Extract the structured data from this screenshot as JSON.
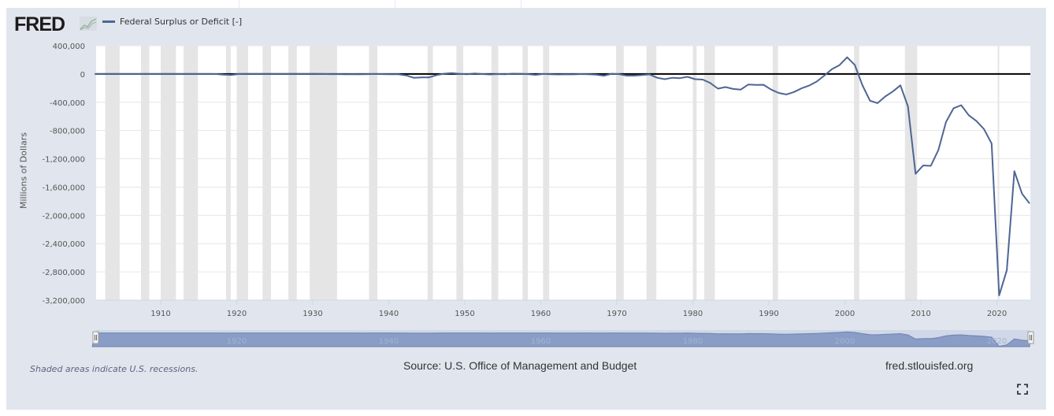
{
  "header": {
    "logo_text": "FRED",
    "logo_icon": "chart-line-icon",
    "legend_label": "Federal Surplus or Deficit [-]",
    "series_color": "#4e6694"
  },
  "footer": {
    "note": "Shaded areas indicate U.S. recessions.",
    "source": "Source: U.S. Office of Management and Budget",
    "site": "fred.stlouisfed.org",
    "fullscreen_icon": "fullscreen-icon"
  },
  "chart_data": {
    "type": "line",
    "title": "Federal Surplus or Deficit [-]",
    "xlabel": "",
    "ylabel": "Millions of Dollars",
    "xlim": [
      1901.5,
      2024.4
    ],
    "ylim": [
      -3200000,
      400000
    ],
    "grid": true,
    "legend": "top-left",
    "y_ticks": [
      400000,
      0,
      -400000,
      -800000,
      -1200000,
      -1600000,
      -2000000,
      -2400000,
      -2800000,
      -3200000
    ],
    "y_tick_labels": [
      "400,000",
      "0",
      "-400,000",
      "-800,000",
      "-1,200,000",
      "-1,600,000",
      "-2,000,000",
      "-2,400,000",
      "-2,800,000",
      "-3,200,000"
    ],
    "x_ticks": [
      1910,
      1920,
      1930,
      1940,
      1950,
      1960,
      1970,
      1980,
      1990,
      2000,
      2010,
      2020
    ],
    "x_tick_labels": [
      "1910",
      "1920",
      "1930",
      "1940",
      "1950",
      "1960",
      "1970",
      "1980",
      "1990",
      "2000",
      "2010",
      "2020"
    ],
    "navigator_labels": [
      "1920",
      "1940",
      "1960",
      "1980",
      "2000",
      "2020"
    ],
    "recessions": [
      [
        1902.7,
        1904.6
      ],
      [
        1907.4,
        1908.5
      ],
      [
        1910.0,
        1912.0
      ],
      [
        1913.0,
        1914.9
      ],
      [
        1918.6,
        1919.2
      ],
      [
        1920.0,
        1921.5
      ],
      [
        1923.4,
        1924.5
      ],
      [
        1926.8,
        1927.9
      ],
      [
        1929.6,
        1933.2
      ],
      [
        1937.4,
        1938.5
      ],
      [
        1945.1,
        1945.8
      ],
      [
        1948.9,
        1949.8
      ],
      [
        1953.5,
        1954.4
      ],
      [
        1957.6,
        1958.3
      ],
      [
        1960.3,
        1961.1
      ],
      [
        1969.9,
        1970.9
      ],
      [
        1973.9,
        1975.2
      ],
      [
        1980.0,
        1980.5
      ],
      [
        1981.5,
        1982.9
      ],
      [
        1990.5,
        1991.2
      ],
      [
        2001.2,
        2001.9
      ],
      [
        2007.9,
        2009.5
      ],
      [
        2020.1,
        2020.3
      ]
    ],
    "series": [
      {
        "name": "Federal Surplus or Deficit [-]",
        "x": [
          1901,
          1902,
          1903,
          1904,
          1905,
          1906,
          1907,
          1908,
          1909,
          1910,
          1911,
          1912,
          1913,
          1914,
          1915,
          1916,
          1917,
          1918,
          1919,
          1920,
          1921,
          1922,
          1923,
          1924,
          1925,
          1926,
          1927,
          1928,
          1929,
          1930,
          1931,
          1932,
          1933,
          1934,
          1935,
          1936,
          1937,
          1938,
          1939,
          1940,
          1941,
          1942,
          1943,
          1944,
          1945,
          1946,
          1947,
          1948,
          1949,
          1950,
          1951,
          1952,
          1953,
          1954,
          1955,
          1956,
          1957,
          1958,
          1959,
          1960,
          1961,
          1962,
          1963,
          1964,
          1965,
          1966,
          1967,
          1968,
          1969,
          1970,
          1971,
          1972,
          1973,
          1974,
          1975,
          1976,
          1977,
          1978,
          1979,
          1980,
          1981,
          1982,
          1983,
          1984,
          1985,
          1986,
          1987,
          1988,
          1989,
          1990,
          1991,
          1992,
          1993,
          1994,
          1995,
          1996,
          1997,
          1998,
          1999,
          2000,
          2001,
          2002,
          2003,
          2004,
          2005,
          2006,
          2007,
          2008,
          2009,
          2010,
          2011,
          2012,
          2013,
          2014,
          2015,
          2016,
          2017,
          2018,
          2019,
          2020,
          2021,
          2022,
          2023,
          2024
        ],
        "values": [
          63,
          77,
          45,
          -43,
          -23,
          25,
          87,
          -57,
          -89,
          -18,
          11,
          3,
          0,
          0,
          -63,
          48,
          -853,
          -9032,
          -13363,
          291,
          509,
          736,
          713,
          963,
          717,
          865,
          1155,
          939,
          734,
          738,
          -462,
          -2735,
          -2602,
          -3586,
          -2803,
          -4304,
          -2193,
          -89,
          -2846,
          -2920,
          -4941,
          -20503,
          -54554,
          -47557,
          -47553,
          -15936,
          4018,
          11796,
          580,
          -3119,
          6102,
          -1519,
          -6493,
          -1154,
          -2993,
          3947,
          3412,
          -2769,
          -12849,
          301,
          -3335,
          -7146,
          -4756,
          -5915,
          -1411,
          -3698,
          -8643,
          -25161,
          3242,
          -2842,
          -23033,
          -23373,
          -14908,
          -6135,
          -53242,
          -73732,
          -53659,
          -59185,
          -40726,
          -73830,
          -78968,
          -127977,
          -207802,
          -185367,
          -212308,
          -221227,
          -149730,
          -155178,
          -152639,
          -221036,
          -269238,
          -290321,
          -255051,
          -203186,
          -163952,
          -107431,
          -21884,
          69270,
          125610,
          236241,
          128236,
          -157758,
          -377585,
          -412727,
          -318346,
          -248181,
          -160701,
          -458553,
          -1412688,
          -1294373,
          -1299599,
          -1076573,
          -679775,
          -484793,
          -441960,
          -584651,
          -665446,
          -779137,
          -983594,
          -3132460,
          -2775306,
          -1375905,
          -1693662,
          -1832821
        ],
        "color": "#4e6694"
      }
    ]
  }
}
